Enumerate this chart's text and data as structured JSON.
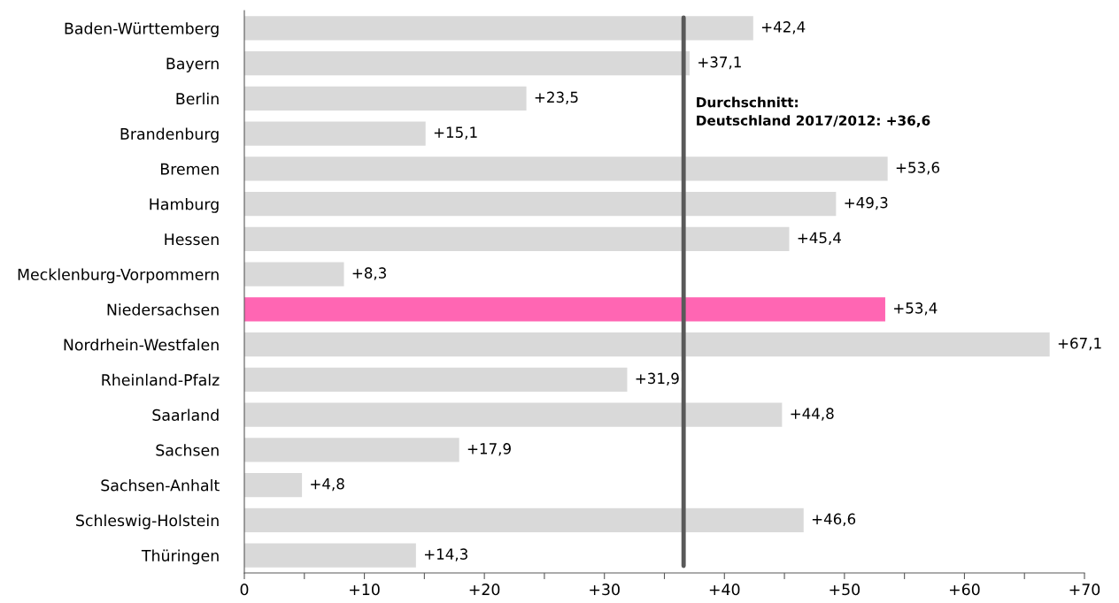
{
  "chart_data": {
    "type": "bar",
    "orientation": "horizontal",
    "categories": [
      "Baden-Württemberg",
      "Bayern",
      "Berlin",
      "Brandenburg",
      "Bremen",
      "Hamburg",
      "Hessen",
      "Mecklenburg-Vorpommern",
      "Niedersachsen",
      "Nordrhein-Westfalen",
      "Rheinland-Pfalz",
      "Saarland",
      "Sachsen",
      "Sachsen-Anhalt",
      "Schleswig-Holstein",
      "Thüringen"
    ],
    "values": [
      42.4,
      37.1,
      23.5,
      15.1,
      53.6,
      49.3,
      45.4,
      8.3,
      53.4,
      67.1,
      31.9,
      44.8,
      17.9,
      4.8,
      46.6,
      14.3
    ],
    "value_labels": [
      "+42,4",
      "+37,1",
      "+23,5",
      "+15,1",
      "+53,6",
      "+49,3",
      "+45,4",
      "+8,3",
      "+53,4",
      "+67,1",
      "+31,9",
      "+44,8",
      "+17,9",
      "+4,8",
      "+46,6",
      "+14,3"
    ],
    "colors": [
      "#d9d9d9",
      "#d9d9d9",
      "#d9d9d9",
      "#d9d9d9",
      "#d9d9d9",
      "#d9d9d9",
      "#d9d9d9",
      "#d9d9d9",
      "#ff66b3",
      "#d9d9d9",
      "#d9d9d9",
      "#d9d9d9",
      "#d9d9d9",
      "#d9d9d9",
      "#d9d9d9",
      "#d9d9d9"
    ],
    "xlim": [
      0,
      70
    ],
    "xticks": [
      0,
      {
        "value": 5,
        "label": null
      },
      {
        "value": 10,
        "label": "+10"
      },
      {
        "value": 15,
        "label": null
      },
      {
        "value": 20,
        "label": "+20"
      },
      {
        "value": 25,
        "label": null
      },
      {
        "value": 30,
        "label": "+30"
      },
      {
        "value": 35,
        "label": null
      },
      {
        "value": 40,
        "label": "+40"
      },
      {
        "value": 45,
        "label": null
      },
      {
        "value": 50,
        "label": "+50"
      },
      {
        "value": 55,
        "label": null
      },
      {
        "value": 60,
        "label": "+60"
      },
      {
        "value": 65,
        "label": null
      },
      {
        "value": 70,
        "label": "+70"
      }
    ],
    "ref_lines": [
      {
        "axis": "x",
        "value": 36.6,
        "label": "Durchschnitt:\nDeutschland 2017/2012: +36,6",
        "color": "#595959"
      }
    ],
    "grid": false
  }
}
